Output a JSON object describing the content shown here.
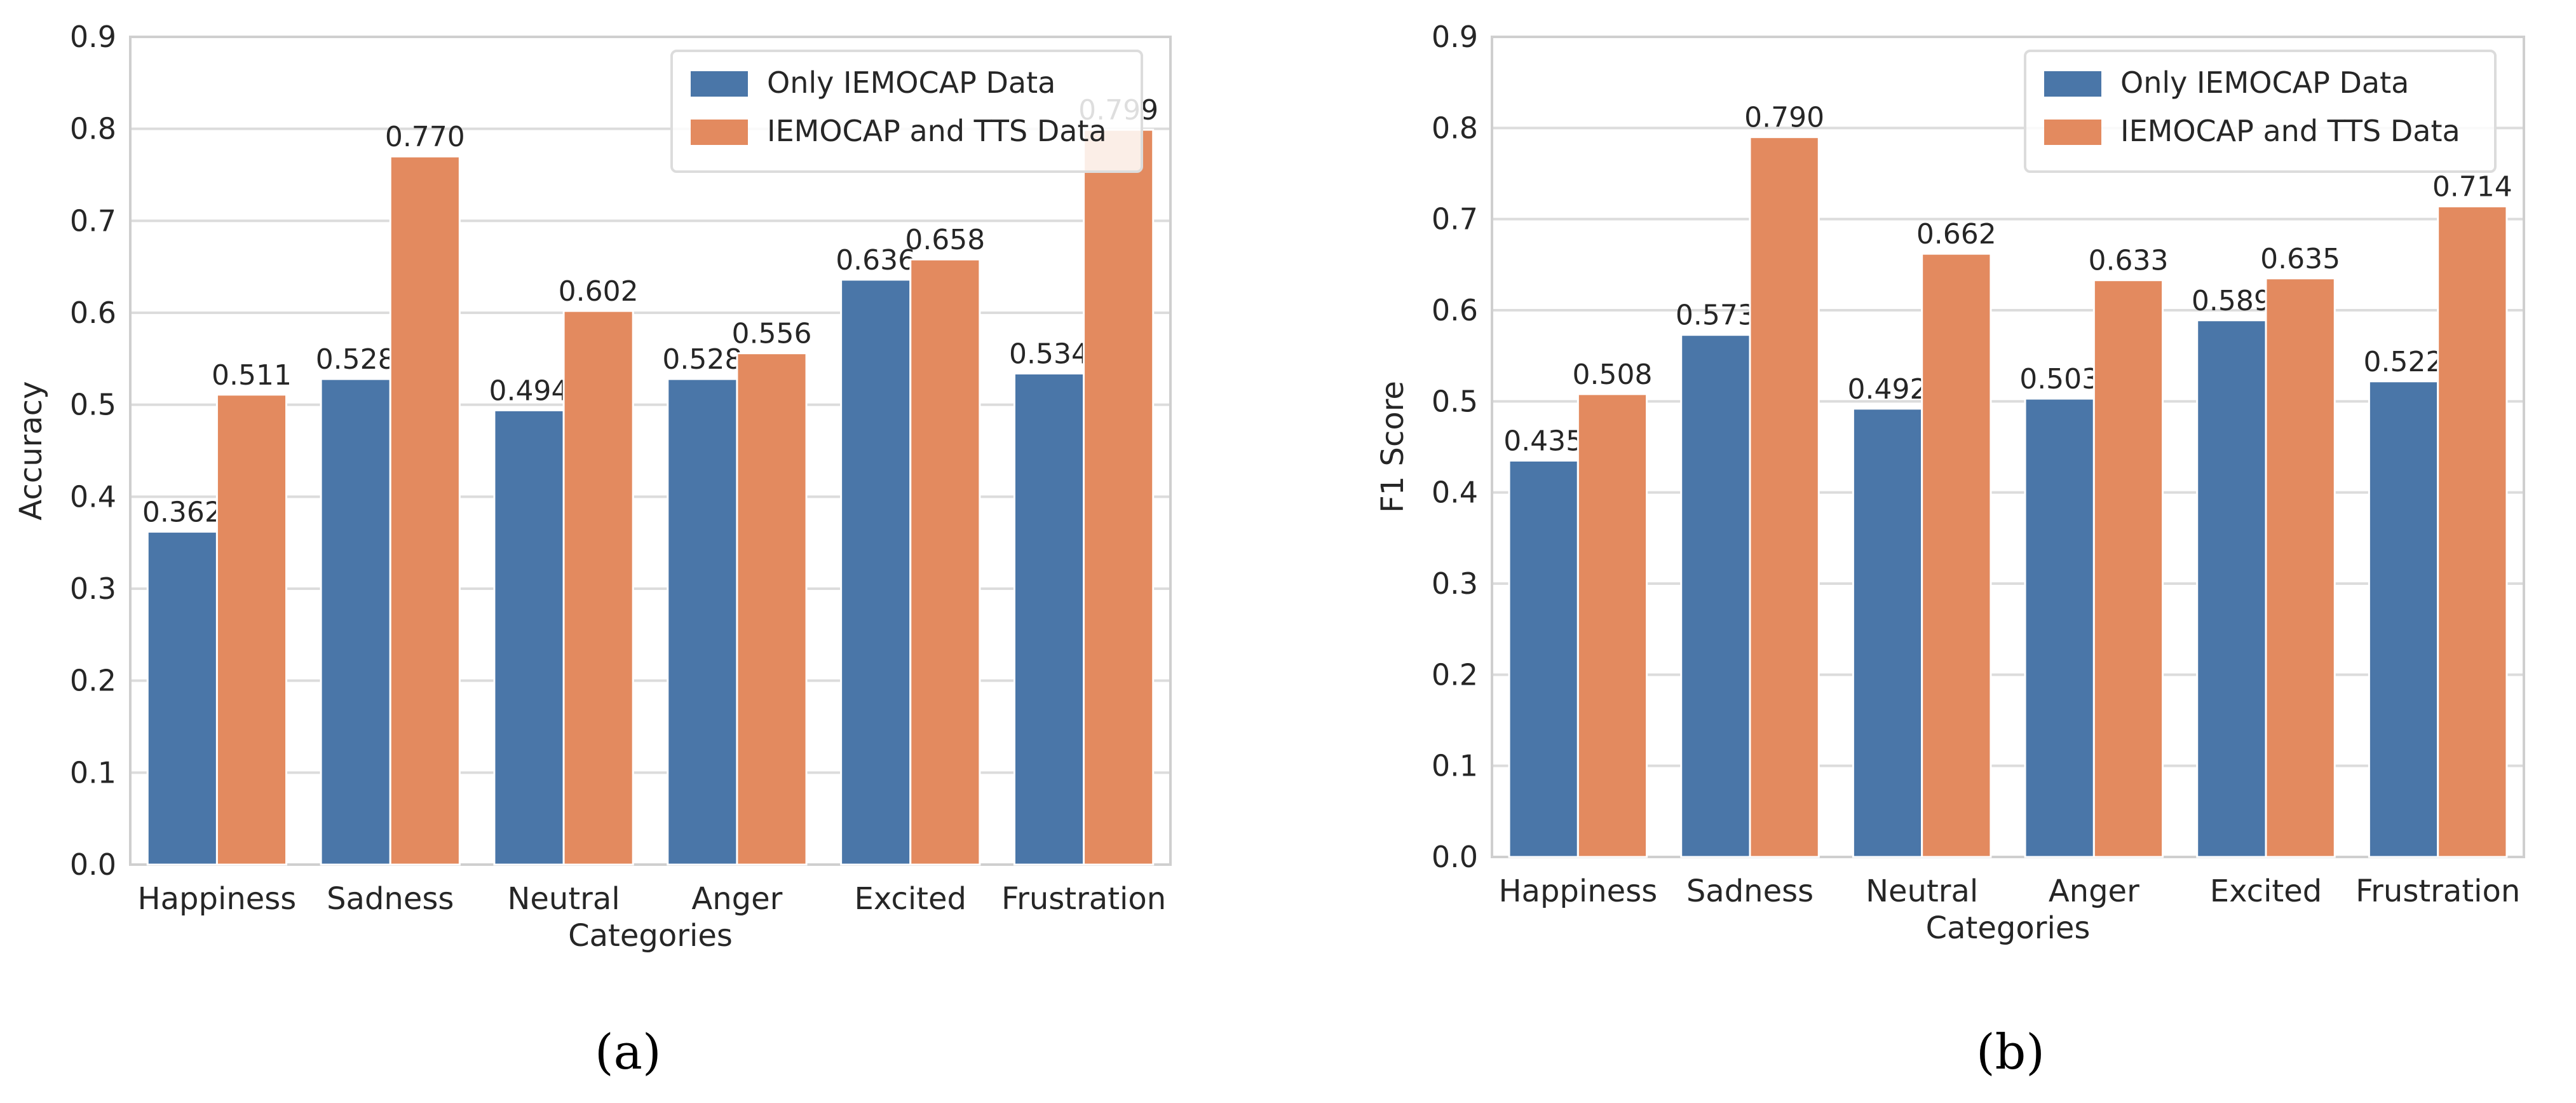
{
  "colors": {
    "series1": "#4a76a8",
    "series2": "#e38a5f",
    "grid": "#dcdcdc",
    "axis": "#cfcfcf",
    "text": "#262626"
  },
  "panels": {
    "a": {
      "sublabel": "(a)"
    },
    "b": {
      "sublabel": "(b)"
    }
  },
  "chart_data": [
    {
      "type": "bar",
      "panel": "a",
      "title": "",
      "xlabel": "Categories",
      "ylabel": "Accuracy",
      "ylim": [
        0,
        0.9
      ],
      "yticks": [
        "0.0",
        "0.1",
        "0.2",
        "0.3",
        "0.4",
        "0.5",
        "0.6",
        "0.7",
        "0.8",
        "0.9"
      ],
      "grid": true,
      "legend_position": "top-right",
      "categories": [
        "Happiness",
        "Sadness",
        "Neutral",
        "Anger",
        "Excited",
        "Frustration"
      ],
      "series": [
        {
          "name": "Only IEMOCAP Data",
          "values": [
            0.362,
            0.528,
            0.494,
            0.528,
            0.636,
            0.534
          ],
          "labels": [
            "0.362",
            "0.528",
            "0.494",
            "0.528",
            "0.636",
            "0.534"
          ]
        },
        {
          "name": "IEMOCAP and TTS Data",
          "values": [
            0.511,
            0.77,
            0.602,
            0.556,
            0.658,
            0.799
          ],
          "labels": [
            "0.511",
            "0.770",
            "0.602",
            "0.556",
            "0.658",
            "0.799"
          ]
        }
      ]
    },
    {
      "type": "bar",
      "panel": "b",
      "title": "",
      "xlabel": "Categories",
      "ylabel": "F1 Score",
      "ylim": [
        0,
        0.9
      ],
      "yticks": [
        "0.0",
        "0.1",
        "0.2",
        "0.3",
        "0.4",
        "0.5",
        "0.6",
        "0.7",
        "0.8",
        "0.9"
      ],
      "grid": true,
      "legend_position": "top-right",
      "categories": [
        "Happiness",
        "Sadness",
        "Neutral",
        "Anger",
        "Excited",
        "Frustration"
      ],
      "series": [
        {
          "name": "Only IEMOCAP Data",
          "values": [
            0.435,
            0.573,
            0.492,
            0.503,
            0.589,
            0.522
          ],
          "labels": [
            "0.435",
            "0.573",
            "0.492",
            "0.503",
            "0.589",
            "0.522"
          ]
        },
        {
          "name": "IEMOCAP and TTS Data",
          "values": [
            0.508,
            0.79,
            0.662,
            0.633,
            0.635,
            0.714
          ],
          "labels": [
            "0.508",
            "0.790",
            "0.662",
            "0.633",
            "0.635",
            "0.714"
          ]
        }
      ]
    }
  ]
}
